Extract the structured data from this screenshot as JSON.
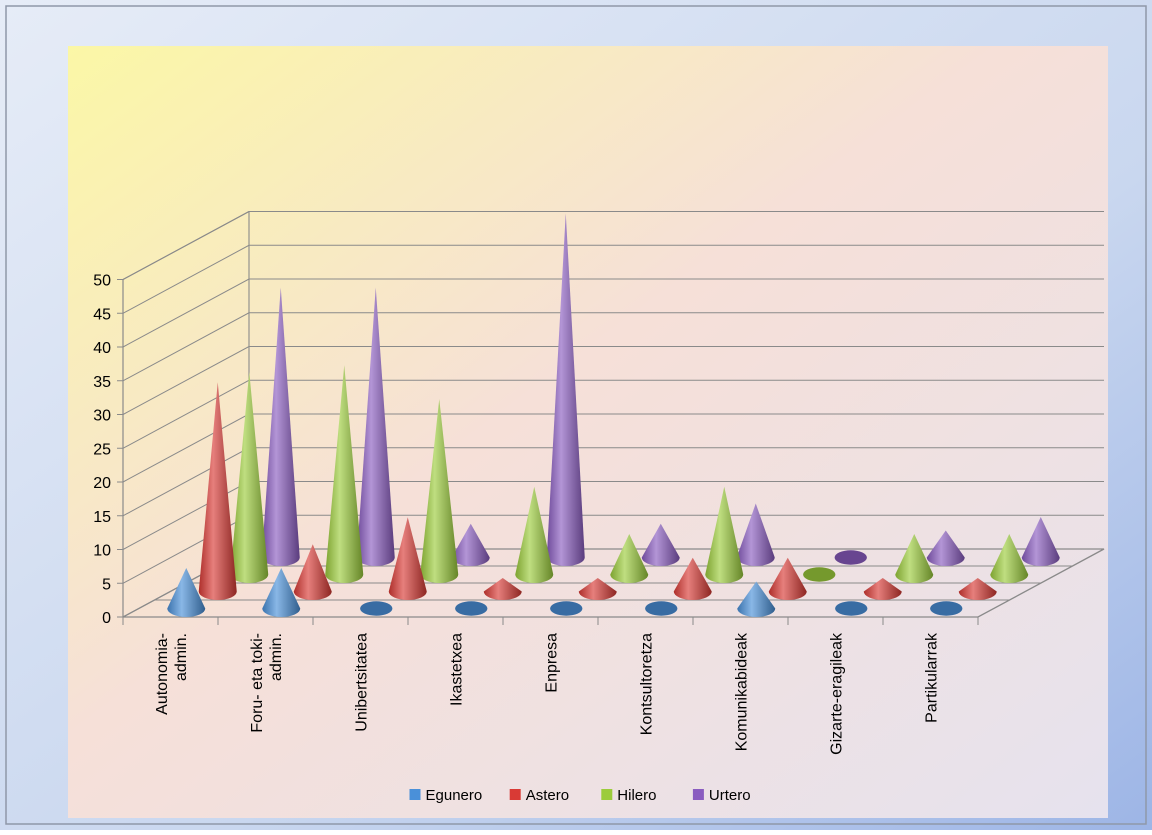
{
  "chart_data": {
    "type": "3d-cone-column",
    "title": "",
    "xlabel": "",
    "ylabel": "",
    "ylim": [
      0,
      50
    ],
    "ytick_step": 5,
    "categories": [
      "Autonomia-admin.",
      "Foru- eta toki-admin.",
      "Unibertsitatea",
      "Ikastetxea",
      "Enpresa",
      "Kontsultoretza",
      "Komunikabideak",
      "Gizarte-eragileak",
      "Partikularrak"
    ],
    "category_lines": [
      [
        "Autonomia-",
        "admin."
      ],
      [
        "Foru- eta toki-",
        "admin."
      ],
      [
        "Unibertsitatea"
      ],
      [
        "Ikastetxea"
      ],
      [
        "Enpresa"
      ],
      [
        "Kontsultoretza"
      ],
      [
        "Komunikabideak"
      ],
      [
        "Gizarte-eragileak"
      ],
      [
        "Partikularrak"
      ]
    ],
    "series": [
      {
        "name": "Egunero",
        "color": "#4a90d9",
        "values": [
          6,
          6,
          0,
          0,
          0,
          0,
          4,
          0,
          0
        ]
      },
      {
        "name": "Astero",
        "color": "#d93a35",
        "values": [
          31,
          7,
          11,
          2,
          2,
          5,
          5,
          2,
          2
        ]
      },
      {
        "name": "Hilero",
        "color": "#9ccc3c",
        "values": [
          30,
          31,
          26,
          13,
          6,
          13,
          0,
          6,
          6
        ]
      },
      {
        "name": "Urtero",
        "color": "#8a5cc0",
        "values": [
          40,
          40,
          5,
          51,
          5,
          8,
          0,
          4,
          6
        ]
      }
    ],
    "legend_position": "bottom",
    "grid": true
  }
}
